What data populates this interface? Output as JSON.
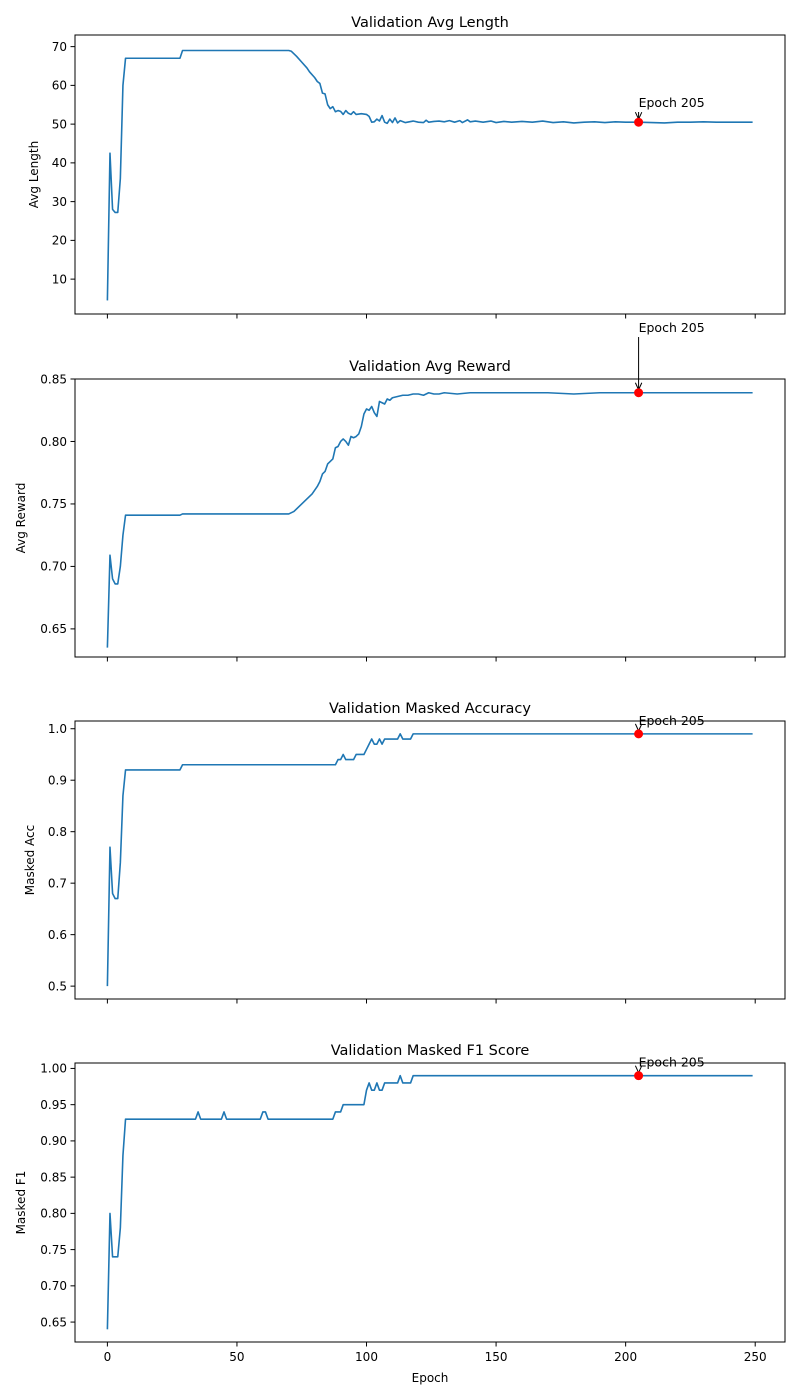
{
  "chart_data": [
    {
      "type": "line",
      "title": "Validation Avg Length",
      "xlabel": "",
      "ylabel": "Avg Length",
      "xlim": [
        -12.5,
        261.5
      ],
      "ylim": [
        1,
        73
      ],
      "xticks": [
        0,
        50,
        100,
        150,
        200,
        250
      ],
      "xtick_labels": [
        "",
        "",
        "",
        "",
        "",
        ""
      ],
      "yticks": [
        10,
        20,
        30,
        40,
        50,
        60,
        70
      ],
      "ytick_labels": [
        "10",
        "20",
        "30",
        "40",
        "50",
        "60",
        "70"
      ],
      "grid": false,
      "color": "#1f77b4",
      "points": [
        [
          0,
          4.5
        ],
        [
          1,
          42.5
        ],
        [
          2,
          28
        ],
        [
          3,
          27.2
        ],
        [
          4,
          27.2
        ],
        [
          5,
          36
        ],
        [
          6,
          60
        ],
        [
          7,
          67
        ],
        [
          10,
          67
        ],
        [
          15,
          67
        ],
        [
          20,
          67
        ],
        [
          25,
          67
        ],
        [
          28,
          67
        ],
        [
          29,
          69
        ],
        [
          35,
          69
        ],
        [
          40,
          69
        ],
        [
          50,
          69
        ],
        [
          60,
          69
        ],
        [
          70,
          69
        ],
        [
          71,
          68.8
        ],
        [
          73,
          67.5
        ],
        [
          75,
          66
        ],
        [
          77,
          64.5
        ],
        [
          78,
          63.5
        ],
        [
          80,
          62
        ],
        [
          81,
          61
        ],
        [
          82,
          60.5
        ],
        [
          83,
          58
        ],
        [
          84,
          57.8
        ],
        [
          85,
          55
        ],
        [
          86,
          54
        ],
        [
          87,
          54.5
        ],
        [
          88,
          53.2
        ],
        [
          89,
          53.5
        ],
        [
          90,
          53.3
        ],
        [
          91,
          52.5
        ],
        [
          92,
          53.5
        ],
        [
          93,
          52.8
        ],
        [
          94,
          52.5
        ],
        [
          95,
          53.2
        ],
        [
          96,
          52.5
        ],
        [
          98,
          52.7
        ],
        [
          100,
          52.5
        ],
        [
          101,
          52
        ],
        [
          102,
          50.5
        ],
        [
          103,
          50.6
        ],
        [
          104,
          51.3
        ],
        [
          105,
          50.8
        ],
        [
          106,
          52.2
        ],
        [
          107,
          50.5
        ],
        [
          108,
          50.2
        ],
        [
          109,
          51.3
        ],
        [
          110,
          50.4
        ],
        [
          111,
          51.6
        ],
        [
          112,
          50.3
        ],
        [
          113,
          50.9
        ],
        [
          115,
          50.4
        ],
        [
          118,
          50.8
        ],
        [
          120,
          50.5
        ],
        [
          122,
          50.4
        ],
        [
          123,
          51
        ],
        [
          124,
          50.5
        ],
        [
          126,
          50.7
        ],
        [
          128,
          50.8
        ],
        [
          130,
          50.6
        ],
        [
          132,
          50.9
        ],
        [
          134,
          50.5
        ],
        [
          136,
          50.9
        ],
        [
          137,
          50.4
        ],
        [
          139,
          51.1
        ],
        [
          140,
          50.6
        ],
        [
          142,
          50.8
        ],
        [
          145,
          50.5
        ],
        [
          148,
          50.8
        ],
        [
          150,
          50.4
        ],
        [
          153,
          50.7
        ],
        [
          156,
          50.5
        ],
        [
          160,
          50.7
        ],
        [
          164,
          50.5
        ],
        [
          168,
          50.8
        ],
        [
          172,
          50.4
        ],
        [
          176,
          50.6
        ],
        [
          180,
          50.3
        ],
        [
          184,
          50.5
        ],
        [
          188,
          50.6
        ],
        [
          192,
          50.4
        ],
        [
          196,
          50.6
        ],
        [
          200,
          50.5
        ],
        [
          205,
          50.5
        ],
        [
          210,
          50.4
        ],
        [
          215,
          50.3
        ],
        [
          220,
          50.5
        ],
        [
          225,
          50.5
        ],
        [
          230,
          50.6
        ],
        [
          235,
          50.5
        ],
        [
          240,
          50.5
        ],
        [
          245,
          50.5
        ],
        [
          249,
          50.5
        ]
      ],
      "best": {
        "x": 205,
        "y": 50.5,
        "label": "Epoch 205",
        "text_at": [
          205,
          53.9
        ]
      }
    },
    {
      "type": "line",
      "title": "Validation Avg Reward",
      "xlabel": "",
      "ylabel": "Avg Reward",
      "xlim": [
        -12.5,
        261.5
      ],
      "ylim": [
        0.6275,
        0.85
      ],
      "xticks": [
        0,
        50,
        100,
        150,
        200,
        250
      ],
      "xtick_labels": [
        "",
        "",
        "",
        "",
        "",
        ""
      ],
      "yticks": [
        0.65,
        0.7,
        0.75,
        0.8,
        0.85
      ],
      "ytick_labels": [
        "0.65",
        "0.70",
        "0.75",
        "0.80",
        "0.85"
      ],
      "grid": false,
      "color": "#1f77b4",
      "points": [
        [
          0,
          0.635
        ],
        [
          1,
          0.709
        ],
        [
          2,
          0.69
        ],
        [
          3,
          0.686
        ],
        [
          4,
          0.686
        ],
        [
          5,
          0.7
        ],
        [
          6,
          0.725
        ],
        [
          7,
          0.741
        ],
        [
          10,
          0.741
        ],
        [
          20,
          0.741
        ],
        [
          28,
          0.741
        ],
        [
          29,
          0.742
        ],
        [
          40,
          0.742
        ],
        [
          50,
          0.742
        ],
        [
          60,
          0.742
        ],
        [
          70,
          0.742
        ],
        [
          72,
          0.744
        ],
        [
          74,
          0.748
        ],
        [
          76,
          0.752
        ],
        [
          78,
          0.756
        ],
        [
          79,
          0.758
        ],
        [
          80,
          0.761
        ],
        [
          81,
          0.764
        ],
        [
          82,
          0.768
        ],
        [
          83,
          0.774
        ],
        [
          84,
          0.776
        ],
        [
          85,
          0.782
        ],
        [
          86,
          0.784
        ],
        [
          87,
          0.786
        ],
        [
          88,
          0.795
        ],
        [
          89,
          0.796
        ],
        [
          90,
          0.8
        ],
        [
          91,
          0.802
        ],
        [
          92,
          0.8
        ],
        [
          93,
          0.797
        ],
        [
          94,
          0.804
        ],
        [
          95,
          0.803
        ],
        [
          96,
          0.804
        ],
        [
          97,
          0.806
        ],
        [
          98,
          0.812
        ],
        [
          99,
          0.822
        ],
        [
          100,
          0.826
        ],
        [
          101,
          0.825
        ],
        [
          102,
          0.828
        ],
        [
          103,
          0.823
        ],
        [
          104,
          0.82
        ],
        [
          105,
          0.832
        ],
        [
          106,
          0.831
        ],
        [
          107,
          0.83
        ],
        [
          108,
          0.834
        ],
        [
          109,
          0.833
        ],
        [
          110,
          0.835
        ],
        [
          112,
          0.836
        ],
        [
          114,
          0.837
        ],
        [
          116,
          0.837
        ],
        [
          118,
          0.838
        ],
        [
          120,
          0.838
        ],
        [
          122,
          0.837
        ],
        [
          124,
          0.839
        ],
        [
          126,
          0.838
        ],
        [
          128,
          0.838
        ],
        [
          130,
          0.839
        ],
        [
          135,
          0.838
        ],
        [
          140,
          0.839
        ],
        [
          145,
          0.839
        ],
        [
          150,
          0.839
        ],
        [
          160,
          0.839
        ],
        [
          170,
          0.839
        ],
        [
          180,
          0.838
        ],
        [
          190,
          0.839
        ],
        [
          200,
          0.839
        ],
        [
          205,
          0.839
        ],
        [
          210,
          0.839
        ],
        [
          220,
          0.839
        ],
        [
          230,
          0.839
        ],
        [
          240,
          0.839
        ],
        [
          249,
          0.839
        ]
      ],
      "best": {
        "x": 205,
        "y": 0.839,
        "label": "Epoch 205",
        "text_at": [
          205,
          0.886
        ]
      }
    },
    {
      "type": "line",
      "title": "Validation Masked Accuracy",
      "xlabel": "",
      "ylabel": "Masked Acc",
      "xlim": [
        -12.5,
        261.5
      ],
      "ylim": [
        0.475,
        1.015
      ],
      "xticks": [
        0,
        50,
        100,
        150,
        200,
        250
      ],
      "xtick_labels": [
        "",
        "",
        "",
        "",
        "",
        ""
      ],
      "yticks": [
        0.5,
        0.6,
        0.7,
        0.8,
        0.9,
        1.0
      ],
      "ytick_labels": [
        "0.5",
        "0.6",
        "0.7",
        "0.8",
        "0.9",
        "1.0"
      ],
      "grid": false,
      "color": "#1f77b4",
      "points": [
        [
          0,
          0.5
        ],
        [
          1,
          0.77
        ],
        [
          2,
          0.68
        ],
        [
          3,
          0.67
        ],
        [
          4,
          0.67
        ],
        [
          5,
          0.74
        ],
        [
          6,
          0.87
        ],
        [
          7,
          0.92
        ],
        [
          28,
          0.92
        ],
        [
          29,
          0.93
        ],
        [
          88,
          0.93
        ],
        [
          89,
          0.94
        ],
        [
          90,
          0.94
        ],
        [
          91,
          0.95
        ],
        [
          92,
          0.94
        ],
        [
          95,
          0.94
        ],
        [
          96,
          0.95
        ],
        [
          99,
          0.95
        ],
        [
          100,
          0.96
        ],
        [
          101,
          0.97
        ],
        [
          102,
          0.98
        ],
        [
          103,
          0.97
        ],
        [
          104,
          0.97
        ],
        [
          105,
          0.98
        ],
        [
          106,
          0.97
        ],
        [
          107,
          0.98
        ],
        [
          112,
          0.98
        ],
        [
          113,
          0.99
        ],
        [
          114,
          0.98
        ],
        [
          117,
          0.98
        ],
        [
          118,
          0.99
        ],
        [
          249,
          0.99
        ]
      ],
      "best": {
        "x": 205,
        "y": 0.99,
        "label": "Epoch 205",
        "text_at": [
          205,
          1.003
        ]
      }
    },
    {
      "type": "line",
      "title": "Validation Masked F1 Score",
      "xlabel": "Epoch",
      "ylabel": "Masked F1",
      "xlim": [
        -12.5,
        261.5
      ],
      "ylim": [
        0.6225,
        1.0075
      ],
      "xticks": [
        0,
        50,
        100,
        150,
        200,
        250
      ],
      "xtick_labels": [
        "0",
        "50",
        "100",
        "150",
        "200",
        "250"
      ],
      "yticks": [
        0.65,
        0.7,
        0.75,
        0.8,
        0.85,
        0.9,
        0.95,
        1.0
      ],
      "ytick_labels": [
        "0.65",
        "0.70",
        "0.75",
        "0.80",
        "0.85",
        "0.90",
        "0.95",
        "1.00"
      ],
      "grid": false,
      "color": "#1f77b4",
      "points": [
        [
          0,
          0.64
        ],
        [
          1,
          0.8
        ],
        [
          2,
          0.74
        ],
        [
          3,
          0.74
        ],
        [
          4,
          0.74
        ],
        [
          5,
          0.78
        ],
        [
          6,
          0.88
        ],
        [
          7,
          0.93
        ],
        [
          34,
          0.93
        ],
        [
          35,
          0.94
        ],
        [
          36,
          0.93
        ],
        [
          44,
          0.93
        ],
        [
          45,
          0.94
        ],
        [
          46,
          0.93
        ],
        [
          59,
          0.93
        ],
        [
          60,
          0.94
        ],
        [
          61,
          0.94
        ],
        [
          62,
          0.93
        ],
        [
          87,
          0.93
        ],
        [
          88,
          0.94
        ],
        [
          90,
          0.94
        ],
        [
          91,
          0.95
        ],
        [
          99,
          0.95
        ],
        [
          100,
          0.97
        ],
        [
          101,
          0.98
        ],
        [
          102,
          0.97
        ],
        [
          103,
          0.97
        ],
        [
          104,
          0.98
        ],
        [
          105,
          0.97
        ],
        [
          106,
          0.97
        ],
        [
          107,
          0.98
        ],
        [
          112,
          0.98
        ],
        [
          113,
          0.99
        ],
        [
          114,
          0.98
        ],
        [
          117,
          0.98
        ],
        [
          118,
          0.99
        ],
        [
          249,
          0.99
        ]
      ],
      "best": {
        "x": 205,
        "y": 0.99,
        "label": "Epoch 205",
        "text_at": [
          205,
          1.0
        ]
      }
    }
  ]
}
